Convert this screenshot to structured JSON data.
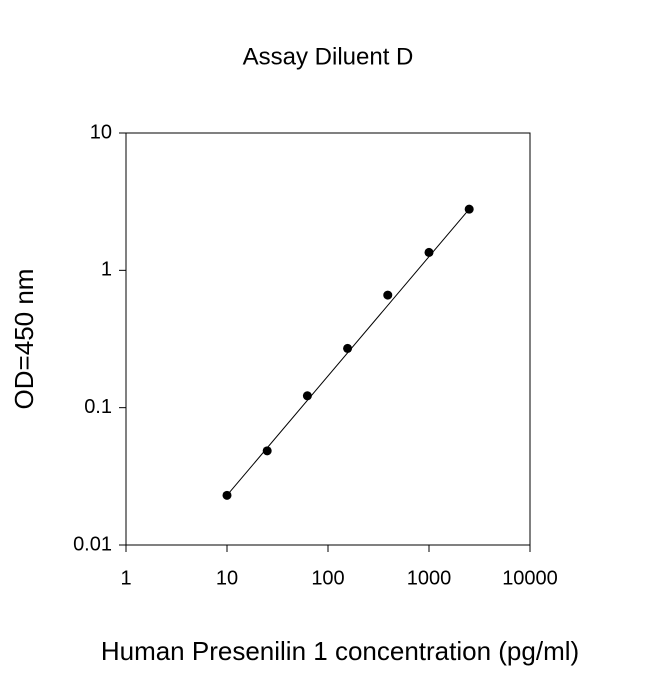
{
  "chart_data": {
    "type": "scatter",
    "title": "Assay Diluent D",
    "x_label": "Human Presenilin 1 concentration (pg/ml)",
    "y_label": "OD=450 nm",
    "x": [
      10,
      25,
      62.5,
      156.25,
      390.625,
      1000,
      2500
    ],
    "series": [
      {
        "color": "#000000",
        "values": [
          0.023,
          0.0485,
          0.122,
          0.27,
          0.66,
          1.35,
          2.79
        ]
      }
    ],
    "trendline": {
      "color": "#000000",
      "x": [
        10,
        2500
      ],
      "y": [
        0.023,
        2.79
      ]
    },
    "x_scale": "log",
    "y_scale": "log",
    "xlim": [
      1,
      10000
    ],
    "ylim": [
      0.01,
      10
    ],
    "xticks": [
      1,
      10,
      100,
      1000,
      10000
    ],
    "yticks": [
      0.01,
      0.1,
      1,
      10
    ],
    "grid": false
  }
}
